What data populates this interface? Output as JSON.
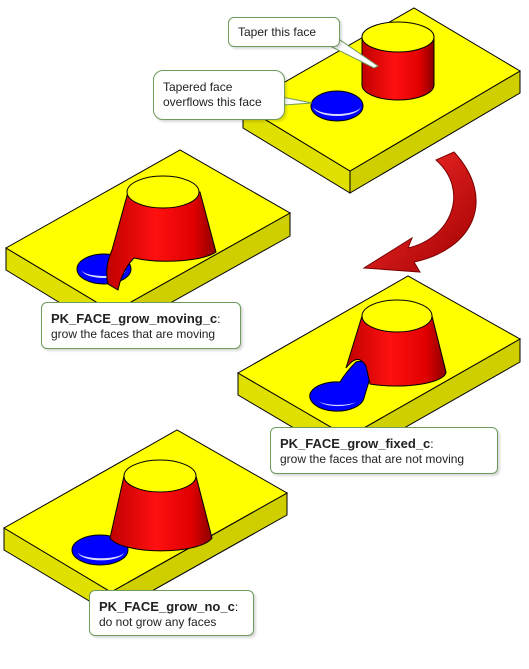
{
  "callouts": {
    "taper_this_face": "Taper this face",
    "tapered_face_overflows": [
      "Tapered face",
      "overflows this face"
    ],
    "grow_moving": {
      "option": "PK_FACE_grow_moving_c",
      "suffix": ":",
      "description": "grow the faces that are moving"
    },
    "grow_fixed": {
      "option": "PK_FACE_grow_fixed_c",
      "suffix": ":",
      "description": "grow the faces that are not moving"
    },
    "grow_no": {
      "option": "PK_FACE_grow_no_c",
      "suffix": ":",
      "description": "do not grow any faces"
    }
  },
  "colors": {
    "block_top": "#ffff00",
    "block_side": "#e8e800",
    "block_front": "#d0d000",
    "cylinder": "#ff0000",
    "cylinder_shade": "#b00000",
    "hole": "#0000ff",
    "arrow": "#cc0000",
    "callout_border": "#6e9a5a"
  }
}
